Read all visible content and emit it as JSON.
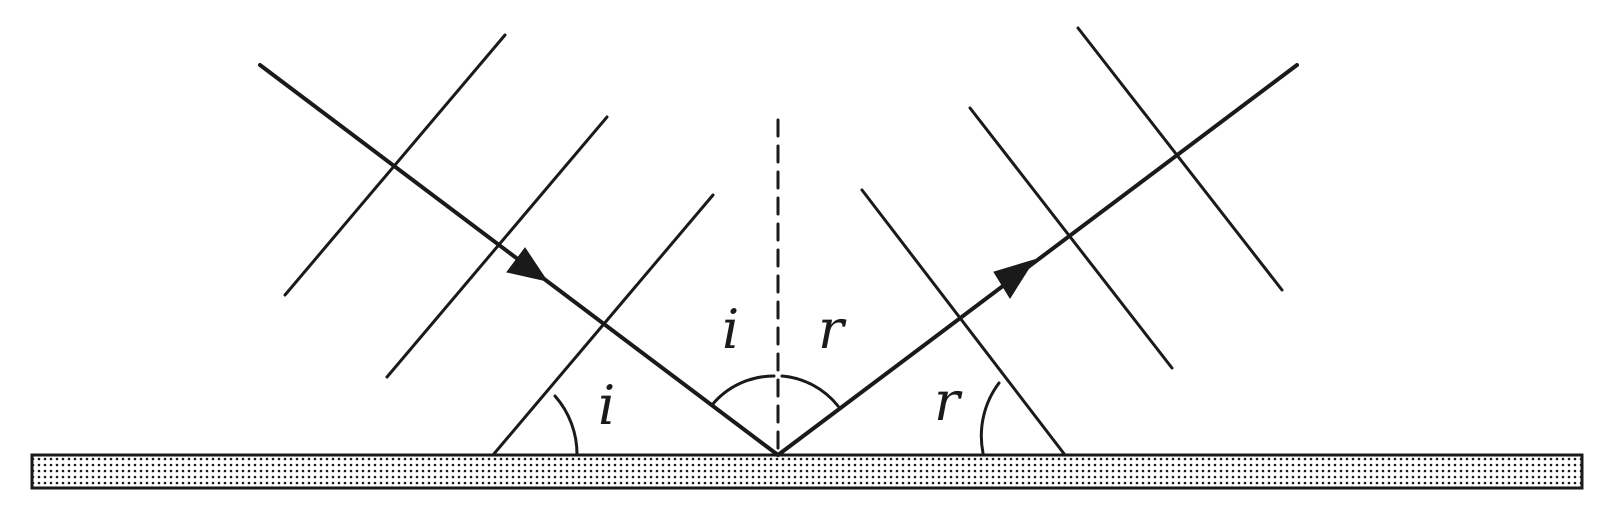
{
  "labels": {
    "incidence_symbol": "i",
    "reflection_symbol": "r"
  },
  "colors": {
    "ink": "#1a1a1a",
    "surface_dots": "#1a1a1a",
    "background": "#ffffff"
  }
}
